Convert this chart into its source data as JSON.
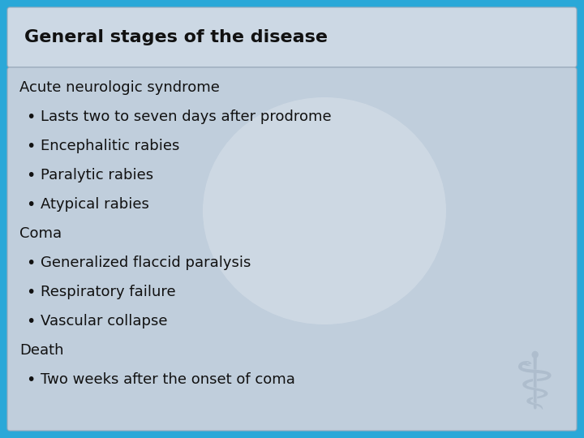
{
  "title": "General stages of the disease",
  "title_fontsize": 16,
  "title_color": "#111111",
  "title_bg_color": "#ccd8e4",
  "background_color_outer": "#2aa8d8",
  "background_color_inner": "#c0cedc",
  "content_lines": [
    {
      "text": "Acute neurologic syndrome",
      "indent": 0,
      "bullet": false
    },
    {
      "text": "Lasts two to seven days after prodrome",
      "indent": 1,
      "bullet": true
    },
    {
      "text": "Encephalitic rabies",
      "indent": 1,
      "bullet": true
    },
    {
      "text": "Paralytic rabies",
      "indent": 1,
      "bullet": true
    },
    {
      "text": "Atypical rabies",
      "indent": 1,
      "bullet": true
    },
    {
      "text": "Coma",
      "indent": 0,
      "bullet": false
    },
    {
      "text": "Generalized flaccid paralysis",
      "indent": 1,
      "bullet": true
    },
    {
      "text": "Respiratory failure",
      "indent": 1,
      "bullet": true
    },
    {
      "text": "Vascular collapse",
      "indent": 1,
      "bullet": true
    },
    {
      "text": "Death",
      "indent": 0,
      "bullet": false
    },
    {
      "text": "Two weeks after the onset of coma",
      "indent": 1,
      "bullet": true
    }
  ],
  "content_fontsize": 13,
  "content_color": "#111111",
  "fig_width": 7.2,
  "fig_height": 5.4,
  "dpi": 100
}
